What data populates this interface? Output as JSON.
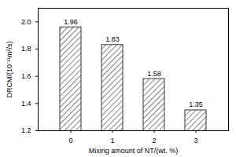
{
  "chart_data": {
    "type": "bar",
    "categories": [
      "0",
      "1",
      "2",
      "3"
    ],
    "values": [
      1.96,
      1.83,
      1.58,
      1.35
    ],
    "color": "#333333",
    "x_label": "Mixing amount of NT/(wt. %)",
    "y_label": "DRCM/(10⁻¹¹m²/s)",
    "ylim": [
      1.2,
      2.1
    ],
    "yticks": [
      1.2,
      1.4,
      1.6,
      1.8,
      {
        "value": 2,
        "label": "2.0"
      }
    ],
    "data_labels": true,
    "grid": false
  }
}
